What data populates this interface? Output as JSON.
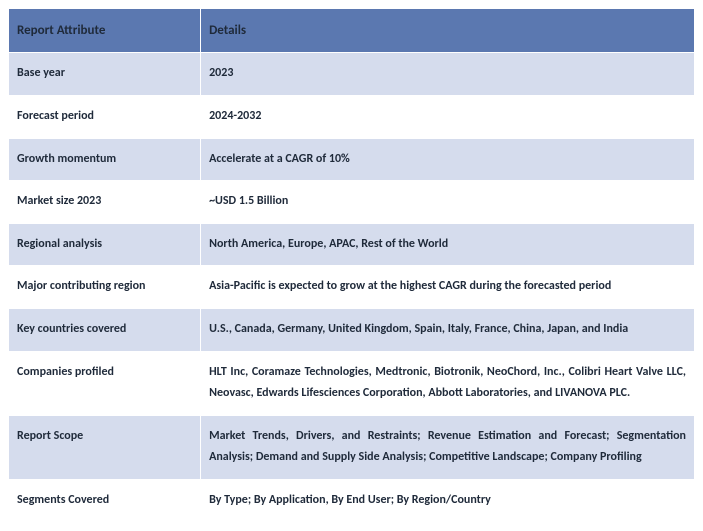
{
  "table": {
    "header_bg": "#5b78b0",
    "header_fg": "#1f2a3a",
    "row_alt_bg": "#d5dced",
    "row_bg": "#ffffff",
    "border_color": "#ffffff",
    "columns": [
      "Report Attribute",
      "Details"
    ],
    "rows": [
      {
        "attr": "Base year",
        "detail": "2023",
        "justify": false
      },
      {
        "attr": "Forecast period",
        "detail": "2024-2032",
        "justify": false
      },
      {
        "attr": "Growth momentum",
        "detail": "Accelerate at a CAGR of 10%",
        "justify": false
      },
      {
        "attr": "Market size 2023",
        "detail": "~USD 1.5 Billion",
        "justify": false
      },
      {
        "attr": "Regional analysis",
        "detail": "North America, Europe, APAC, Rest of the World",
        "justify": false
      },
      {
        "attr": "Major contributing region",
        "detail": "Asia-Pacific is expected to grow at the highest CAGR during the forecasted period",
        "justify": false
      },
      {
        "attr": "Key countries covered",
        "detail": "U.S., Canada, Germany, United Kingdom, Spain, Italy, France, China, Japan, and India",
        "justify": false
      },
      {
        "attr": "Companies profiled",
        "detail": "HLT Inc, Coramaze Technologies, Medtronic, Biotronik, NeoChord, Inc., Colibri Heart Valve LLC, Neovasc, Edwards Lifesciences Corporation, Abbott Laboratories, and LIVANOVA PLC.",
        "justify": true
      },
      {
        "attr": "Report Scope",
        "detail": "Market Trends, Drivers, and Restraints; Revenue Estimation and Forecast; Segmentation Analysis; Demand and Supply Side Analysis; Competitive Landscape; Company Profiling",
        "justify": true
      },
      {
        "attr": "Segments Covered",
        "detail": "By Type; By Application, By End User; By Region/Country",
        "justify": false
      }
    ]
  }
}
